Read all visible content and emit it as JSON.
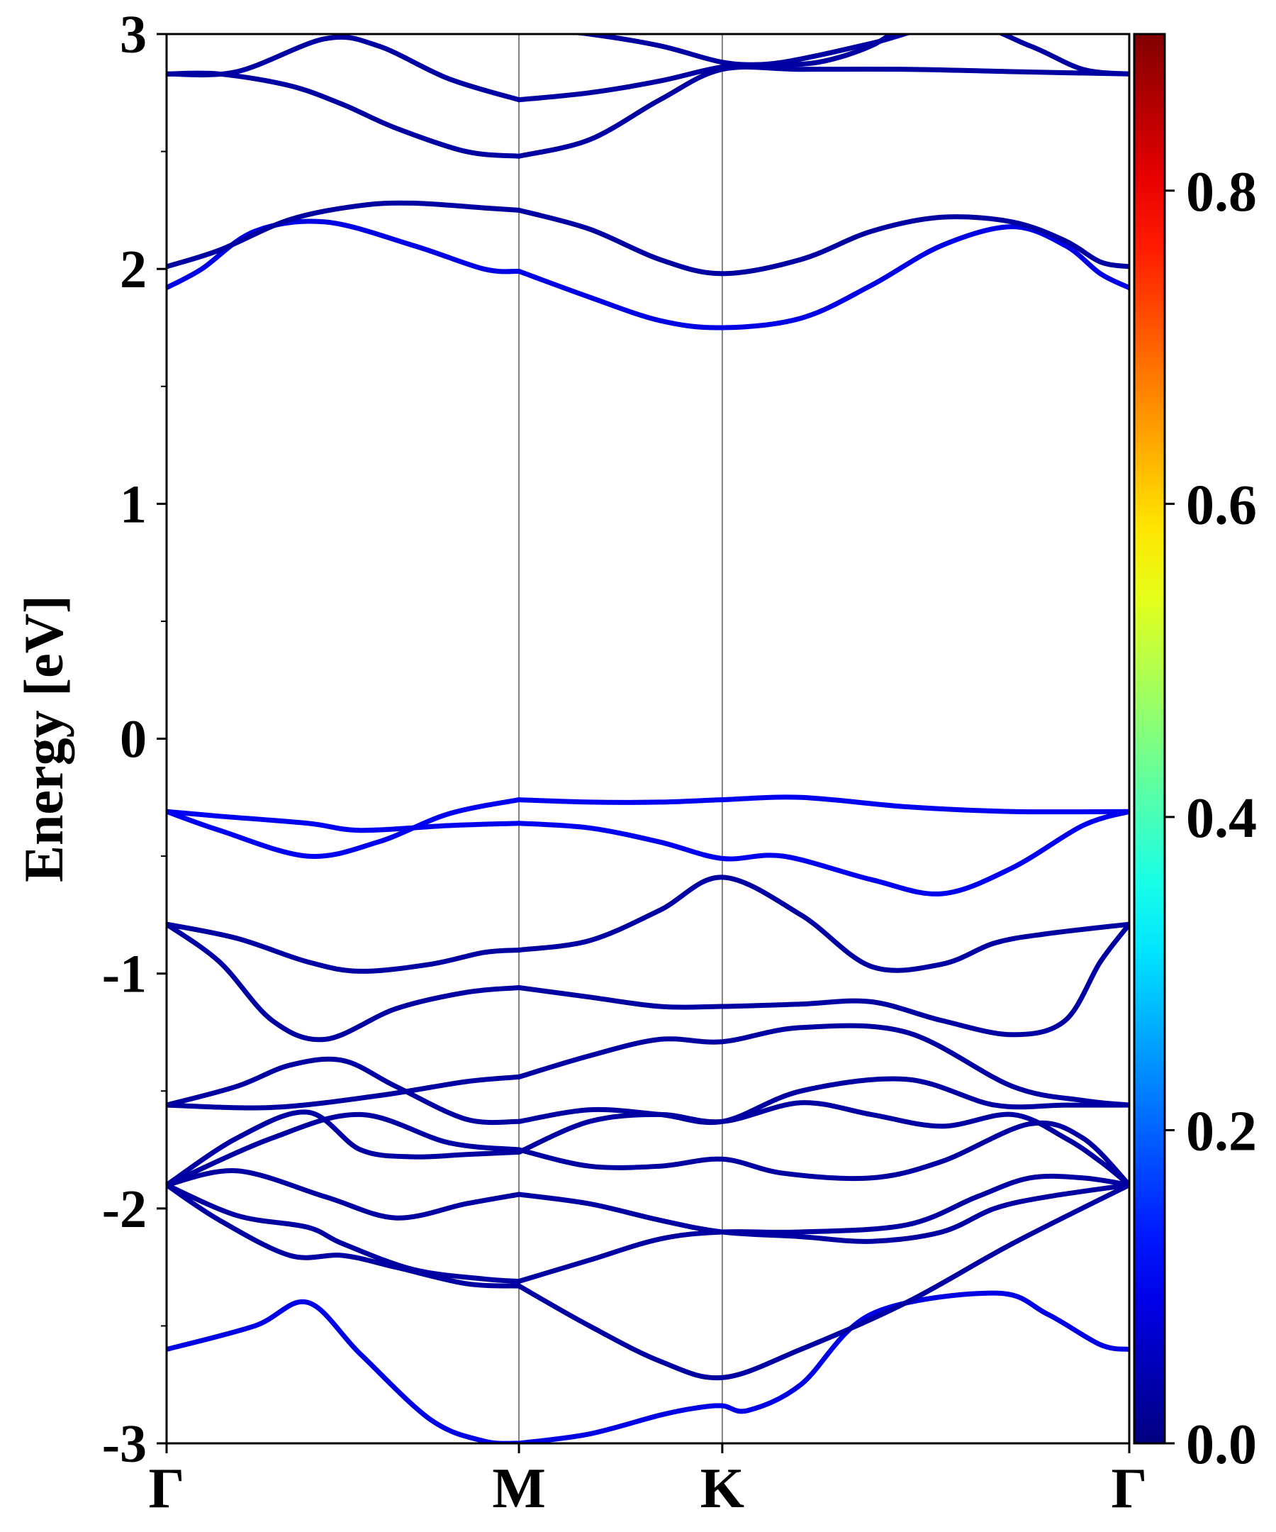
{
  "chart_data": {
    "type": "line",
    "title": "",
    "xlabel": "",
    "ylabel": "Energy [eV]",
    "ylim": [
      -3,
      3
    ],
    "x_ticks": [
      {
        "label": "Γ",
        "k": 0.0
      },
      {
        "label": "M",
        "k": 1.0
      },
      {
        "label": "K",
        "k": 1.577
      },
      {
        "label": "Γ",
        "k": 2.732
      }
    ],
    "y_ticks": [
      "-3",
      "-2",
      "-1",
      "0",
      "1",
      "2",
      "3"
    ],
    "y_tick_values": [
      -3,
      -2,
      -1,
      0,
      1,
      2,
      3
    ],
    "y_minor_ticks": [
      -2.5,
      -1.5,
      -0.5,
      0.5,
      1.5,
      2.5
    ],
    "grid": false,
    "colorbar": {
      "colormap": "jet",
      "range": [
        0.0,
        0.9
      ],
      "ticks": [
        "0.0",
        "0.2",
        "0.4",
        "0.6",
        "0.8"
      ],
      "tick_values": [
        0.0,
        0.2,
        0.4,
        0.6,
        0.8
      ]
    },
    "colors": {
      "weight_0_00": "#000080",
      "weight_0_10": "#1010f0",
      "weight_0_20": "#0070ff",
      "weight_0_40": "#20ffd0",
      "weight_0_60": "#e8ff10",
      "weight_0_80": "#ff3000",
      "weight_0_90": "#800000"
    },
    "series": [
      {
        "x": [
          0,
          0.25,
          0.4,
          0.55,
          0.75,
          0.9,
          1.0
        ],
        "values": [
          -2.6,
          -2.5,
          -2.4,
          -2.62,
          -2.9,
          -2.99,
          -3.0
        ],
        "weight": 0.09
      },
      {
        "x": [
          1.0,
          1.2,
          1.4,
          1.5,
          1.577,
          1.65,
          1.8,
          2.0,
          2.35,
          2.5,
          2.65,
          2.732
        ],
        "values": [
          -3.0,
          -2.96,
          -2.88,
          -2.85,
          -2.84,
          -2.86,
          -2.75,
          -2.45,
          -2.36,
          -2.45,
          -2.58,
          -2.6
        ],
        "weight": 0.09
      },
      {
        "x": [
          0,
          0.15,
          0.35,
          0.5,
          0.65,
          0.85,
          1.0
        ],
        "values": [
          -1.9,
          -2.05,
          -2.2,
          -2.2,
          -2.25,
          -2.32,
          -2.33
        ],
        "weight": 0.03
      },
      {
        "x": [
          1.0,
          1.2,
          1.4,
          1.577,
          1.8,
          2.1,
          2.4,
          2.732
        ],
        "values": [
          -2.33,
          -2.5,
          -2.65,
          -2.72,
          -2.6,
          -2.4,
          -2.15,
          -1.9
        ],
        "weight": 0.03
      },
      {
        "x": [
          0,
          0.2,
          0.4,
          0.5,
          0.7,
          0.9,
          1.0
        ],
        "values": [
          -1.9,
          -2.03,
          -2.08,
          -2.15,
          -2.26,
          -2.3,
          -2.31
        ],
        "weight": 0.03
      },
      {
        "x": [
          1.0,
          1.2,
          1.4,
          1.577,
          1.8,
          2.1,
          2.3,
          2.45,
          2.6,
          2.732
        ],
        "values": [
          -2.31,
          -2.22,
          -2.13,
          -2.1,
          -2.1,
          -2.07,
          -1.95,
          -1.87,
          -1.87,
          -1.9
        ],
        "weight": 0.03
      },
      {
        "x": [
          0,
          0.2,
          0.45,
          0.65,
          0.85,
          1.0
        ],
        "values": [
          -1.9,
          -1.84,
          -1.95,
          -2.04,
          -1.98,
          -1.94
        ],
        "weight": 0.03
      },
      {
        "x": [
          1.0,
          1.2,
          1.4,
          1.577,
          1.8,
          2.0,
          2.2,
          2.35,
          2.5,
          2.732
        ],
        "values": [
          -1.94,
          -1.98,
          -2.05,
          -2.1,
          -2.12,
          -2.14,
          -2.1,
          -2.0,
          -1.95,
          -1.9
        ],
        "weight": 0.03
      },
      {
        "x": [
          0,
          0.2,
          0.4,
          0.55,
          0.7,
          0.85,
          1.0
        ],
        "values": [
          -1.9,
          -1.7,
          -1.59,
          -1.75,
          -1.78,
          -1.77,
          -1.76
        ],
        "weight": 0.03
      },
      {
        "x": [
          1.0,
          1.2,
          1.4,
          1.577,
          1.8,
          2.0,
          2.2,
          2.4,
          2.55,
          2.65,
          2.732
        ],
        "values": [
          -1.76,
          -1.63,
          -1.6,
          -1.63,
          -1.55,
          -1.6,
          -1.65,
          -1.6,
          -1.7,
          -1.8,
          -1.9
        ],
        "weight": 0.03
      },
      {
        "x": [
          0,
          0.3,
          0.55,
          0.8,
          1.0
        ],
        "values": [
          -1.9,
          -1.7,
          -1.6,
          -1.72,
          -1.75
        ],
        "weight": 0.03
      },
      {
        "x": [
          1.0,
          1.2,
          1.4,
          1.577,
          1.75,
          2.0,
          2.2,
          2.45,
          2.6,
          2.732
        ],
        "values": [
          -1.75,
          -1.82,
          -1.82,
          -1.79,
          -1.85,
          -1.87,
          -1.8,
          -1.64,
          -1.7,
          -1.9
        ],
        "weight": 0.03
      },
      {
        "x": [
          0,
          0.2,
          0.35,
          0.5,
          0.65,
          0.85,
          1.0
        ],
        "values": [
          -1.56,
          -1.48,
          -1.39,
          -1.37,
          -1.48,
          -1.62,
          -1.63
        ],
        "weight": 0.03
      },
      {
        "x": [
          1.0,
          1.2,
          1.4,
          1.577,
          1.8,
          2.1,
          2.35,
          2.55,
          2.732
        ],
        "values": [
          -1.63,
          -1.58,
          -1.6,
          -1.63,
          -1.5,
          -1.45,
          -1.56,
          -1.56,
          -1.56
        ],
        "weight": 0.03
      },
      {
        "x": [
          0,
          0.3,
          0.6,
          0.85,
          1.0
        ],
        "values": [
          -1.56,
          -1.57,
          -1.52,
          -1.46,
          -1.44
        ],
        "weight": 0.03
      },
      {
        "x": [
          1.0,
          1.2,
          1.4,
          1.577,
          1.8,
          2.1,
          2.4,
          2.6,
          2.732
        ],
        "values": [
          -1.44,
          -1.35,
          -1.28,
          -1.29,
          -1.23,
          -1.25,
          -1.48,
          -1.54,
          -1.56
        ],
        "weight": 0.03
      },
      {
        "x": [
          0,
          0.15,
          0.3,
          0.45,
          0.65,
          0.85,
          1.0
        ],
        "values": [
          -0.79,
          -0.95,
          -1.2,
          -1.28,
          -1.15,
          -1.08,
          -1.06
        ],
        "weight": 0.03
      },
      {
        "x": [
          1.0,
          1.2,
          1.4,
          1.577,
          1.8,
          2.0,
          2.2,
          2.4,
          2.55,
          2.65,
          2.732
        ],
        "values": [
          -1.06,
          -1.1,
          -1.14,
          -1.14,
          -1.13,
          -1.12,
          -1.2,
          -1.26,
          -1.2,
          -0.95,
          -0.79
        ],
        "weight": 0.03
      },
      {
        "x": [
          0,
          0.2,
          0.4,
          0.55,
          0.75,
          0.9,
          1.0
        ],
        "values": [
          -0.79,
          -0.85,
          -0.95,
          -0.99,
          -0.96,
          -0.91,
          -0.9
        ],
        "weight": 0.03
      },
      {
        "x": [
          1.0,
          1.2,
          1.4,
          1.577,
          1.8,
          2.0,
          2.2,
          2.35,
          2.5,
          2.732
        ],
        "values": [
          -0.9,
          -0.86,
          -0.73,
          -0.59,
          -0.75,
          -0.97,
          -0.96,
          -0.87,
          -0.83,
          -0.79
        ],
        "weight": 0.03
      },
      {
        "x": [
          0,
          0.15,
          0.4,
          0.55,
          0.8,
          1.0
        ],
        "values": [
          -0.31,
          -0.33,
          -0.36,
          -0.39,
          -0.37,
          -0.36
        ],
        "weight": 0.1
      },
      {
        "x": [
          1.0,
          1.2,
          1.4,
          1.577,
          1.75,
          2.0,
          2.2,
          2.4,
          2.6,
          2.732
        ],
        "values": [
          -0.36,
          -0.38,
          -0.44,
          -0.51,
          -0.5,
          -0.6,
          -0.66,
          -0.55,
          -0.37,
          -0.31
        ],
        "weight": 0.1
      },
      {
        "x": [
          0,
          0.15,
          0.4,
          0.6,
          0.8,
          1.0
        ],
        "values": [
          -0.31,
          -0.39,
          -0.5,
          -0.44,
          -0.32,
          -0.26
        ],
        "weight": 0.1
      },
      {
        "x": [
          1.0,
          1.2,
          1.4,
          1.577,
          1.8,
          2.1,
          2.4,
          2.732
        ],
        "values": [
          -0.26,
          -0.27,
          -0.27,
          -0.26,
          -0.25,
          -0.29,
          -0.31,
          -0.31
        ],
        "weight": 0.1
      },
      {
        "x": [
          0,
          0.1,
          0.25,
          0.45,
          0.7,
          0.9,
          1.0
        ],
        "values": [
          1.92,
          2.0,
          2.16,
          2.2,
          2.1,
          2.0,
          1.99
        ],
        "weight": 0.09
      },
      {
        "x": [
          1.0,
          1.2,
          1.4,
          1.577,
          1.8,
          2.0,
          2.2,
          2.4,
          2.55,
          2.65,
          2.732
        ],
        "values": [
          1.99,
          1.88,
          1.78,
          1.75,
          1.79,
          1.93,
          2.1,
          2.18,
          2.1,
          1.98,
          1.92
        ],
        "weight": 0.09
      },
      {
        "x": [
          0,
          0.15,
          0.35,
          0.55,
          0.7,
          0.9,
          1.0
        ],
        "values": [
          2.01,
          2.08,
          2.21,
          2.27,
          2.28,
          2.26,
          2.25
        ],
        "weight": 0.03
      },
      {
        "x": [
          1.0,
          1.2,
          1.4,
          1.577,
          1.8,
          2.0,
          2.2,
          2.4,
          2.55,
          2.65,
          2.732
        ],
        "values": [
          2.25,
          2.17,
          2.04,
          1.98,
          2.04,
          2.16,
          2.22,
          2.2,
          2.12,
          2.03,
          2.01
        ],
        "weight": 0.03
      },
      {
        "x": [
          0,
          0.15,
          0.35,
          0.5,
          0.65,
          0.85,
          1.0
        ],
        "values": [
          2.83,
          2.83,
          2.78,
          2.7,
          2.6,
          2.5,
          2.48
        ],
        "weight": 0.03
      },
      {
        "x": [
          1.0,
          1.2,
          1.4,
          1.577,
          1.8,
          2.1,
          2.4,
          2.732
        ],
        "values": [
          2.48,
          2.55,
          2.72,
          2.85,
          2.85,
          2.85,
          2.84,
          2.83
        ],
        "weight": 0.03
      },
      {
        "x": [
          0,
          0.2,
          0.45,
          0.6,
          0.8,
          1.0
        ],
        "values": [
          2.83,
          2.84,
          2.98,
          2.95,
          2.81,
          2.72
        ],
        "weight": 0.03
      },
      {
        "x": [
          1.0,
          1.2,
          1.4,
          1.577,
          1.75,
          2.0,
          2.25,
          2.45,
          2.6,
          2.732
        ],
        "values": [
          2.72,
          2.75,
          2.8,
          2.86,
          2.88,
          2.96,
          3.05,
          2.95,
          2.85,
          2.83
        ],
        "weight": 0.03
      },
      {
        "x": [
          0.9,
          1.0,
          1.2,
          1.4,
          1.577,
          1.7,
          1.85,
          2.0,
          2.1
        ],
        "values": [
          3.05,
          3.03,
          3.0,
          2.95,
          2.88,
          2.87,
          2.88,
          2.95,
          3.05
        ],
        "weight": 0.03
      }
    ]
  }
}
